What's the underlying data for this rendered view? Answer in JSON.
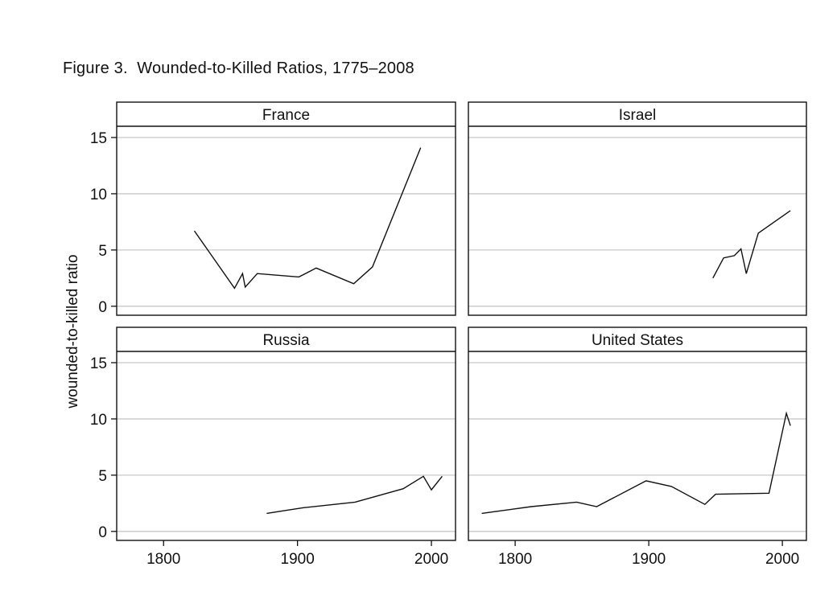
{
  "figure": {
    "title": "Figure 3.  Wounded-to-Killed Ratios, 1775–2008"
  },
  "chart_data": {
    "type": "line",
    "layout": "2x2 facet grid",
    "ylabel": "wounded-to-killed ratio",
    "xlabel": "",
    "xlim": [
      1765,
      2018
    ],
    "ylim": [
      -0.8,
      16
    ],
    "x_ticks": [
      1800,
      1900,
      2000
    ],
    "y_ticks": [
      0,
      5,
      10,
      15
    ],
    "grid": "horizontal at y ticks",
    "line_color": "#111111",
    "grid_color": "#c8c8c8",
    "panels": [
      {
        "name": "France",
        "points": [
          [
            1823,
            6.7
          ],
          [
            1853,
            1.6
          ],
          [
            1859,
            2.9
          ],
          [
            1861,
            1.7
          ],
          [
            1870,
            2.9
          ],
          [
            1901,
            2.6
          ],
          [
            1914,
            3.4
          ],
          [
            1942,
            2.0
          ],
          [
            1956,
            3.5
          ],
          [
            1992,
            14.1
          ]
        ]
      },
      {
        "name": "Israel",
        "points": [
          [
            1948,
            2.5
          ],
          [
            1956,
            4.3
          ],
          [
            1964,
            4.5
          ],
          [
            1969,
            5.1
          ],
          [
            1973,
            2.9
          ],
          [
            1982,
            6.5
          ],
          [
            2006,
            8.5
          ]
        ]
      },
      {
        "name": "Russia",
        "points": [
          [
            1877,
            1.6
          ],
          [
            1904,
            2.1
          ],
          [
            1943,
            2.6
          ],
          [
            1979,
            3.8
          ],
          [
            1994,
            4.9
          ],
          [
            2000,
            3.7
          ],
          [
            2008,
            4.9
          ]
        ]
      },
      {
        "name": "United States",
        "points": [
          [
            1775,
            1.6
          ],
          [
            1812,
            2.2
          ],
          [
            1846,
            2.6
          ],
          [
            1861,
            2.2
          ],
          [
            1898,
            4.5
          ],
          [
            1917,
            4.0
          ],
          [
            1942,
            2.4
          ],
          [
            1950,
            3.3
          ],
          [
            1990,
            3.4
          ],
          [
            2003,
            10.5
          ],
          [
            2006,
            9.4
          ]
        ]
      }
    ]
  }
}
